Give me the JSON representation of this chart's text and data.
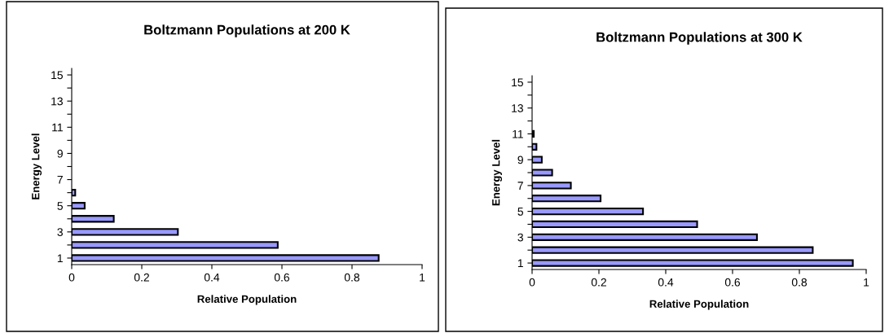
{
  "chart_data": [
    {
      "type": "bar",
      "orientation": "horizontal",
      "title": "Boltzmann Populations at 200 K",
      "xlabel": "Relative Population",
      "ylabel": "Energy Level",
      "categories": [
        "15",
        null,
        "13",
        null,
        "11",
        null,
        "9",
        null,
        "7",
        null,
        "5",
        null,
        "3",
        null,
        "1"
      ],
      "values": [
        null,
        null,
        null,
        null,
        null,
        null,
        null,
        null,
        null,
        0.01,
        0.037,
        0.12,
        0.303,
        0.588,
        0.876
      ],
      "color": "#9999ff",
      "xlim": [
        0,
        1
      ],
      "xticks": [
        0,
        0.2,
        0.4,
        0.6,
        0.8,
        1
      ],
      "grid": false,
      "legend": false
    },
    {
      "type": "bar",
      "orientation": "horizontal",
      "title": "Boltzmann Populations at 300 K",
      "xlabel": "Relative Population",
      "ylabel": "Energy Level",
      "categories": [
        "15",
        null,
        "13",
        null,
        "11",
        null,
        "9",
        null,
        "7",
        null,
        "5",
        null,
        "3",
        null,
        "1"
      ],
      "values": [
        null,
        null,
        null,
        null,
        0.005,
        0.013,
        0.029,
        0.06,
        0.116,
        0.205,
        0.332,
        0.494,
        0.673,
        0.84,
        0.96
      ],
      "color": "#9999ff",
      "xlim": [
        0,
        1
      ],
      "xticks": [
        0,
        0.2,
        0.4,
        0.6,
        0.8,
        1
      ],
      "grid": false,
      "legend": false
    }
  ]
}
